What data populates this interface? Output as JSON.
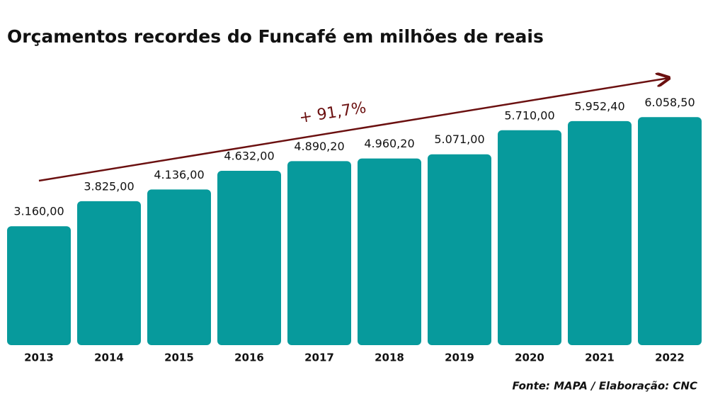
{
  "chart_data": {
    "type": "bar",
    "title": "Orçamentos recordes do Funcafé em milhões de reais",
    "categories": [
      "2013",
      "2014",
      "2015",
      "2016",
      "2017",
      "2018",
      "2019",
      "2020",
      "2021",
      "2022"
    ],
    "values": [
      3160,
      3825,
      4136,
      4632,
      4890.2,
      4960.2,
      5071,
      5710,
      5952.4,
      6058.5
    ],
    "value_labels": [
      "3.160,00",
      "3.825,00",
      "4.136,00",
      "4.632,00",
      "4.890,20",
      "4.960,20",
      "5.071,00",
      "5.710,00",
      "5.952,40",
      "6.058,50"
    ],
    "color": "#079a9c",
    "annotation": "+ 91,7%",
    "source": "Fonte: MAPA / Elaboração: CNC"
  }
}
